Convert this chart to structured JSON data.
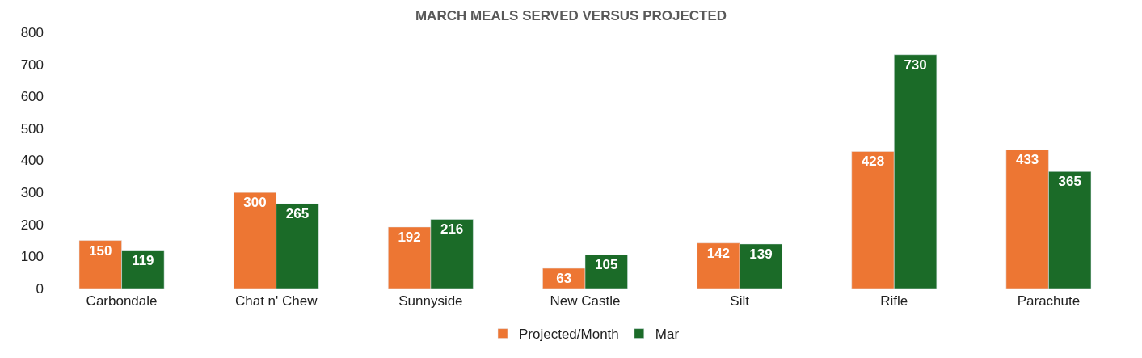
{
  "chart_data": {
    "type": "bar",
    "title": "MARCH MEALS SERVED VERSUS PROJECTED",
    "categories": [
      "Carbondale",
      "Chat n' Chew",
      "Sunnyside",
      "New Castle",
      "Silt",
      "Rifle",
      "Parachute"
    ],
    "series": [
      {
        "name": "Projected/Month",
        "color": "#ed7633",
        "values": [
          150,
          300,
          192,
          63,
          142,
          428,
          433
        ]
      },
      {
        "name": "Mar",
        "color": "#1b6b28",
        "values": [
          119,
          265,
          216,
          105,
          139,
          730,
          365
        ]
      }
    ],
    "ylim": [
      0,
      800
    ],
    "yticks": [
      0,
      100,
      200,
      300,
      400,
      500,
      600,
      700,
      800
    ],
    "data_labels": true,
    "legend": "bottom"
  }
}
